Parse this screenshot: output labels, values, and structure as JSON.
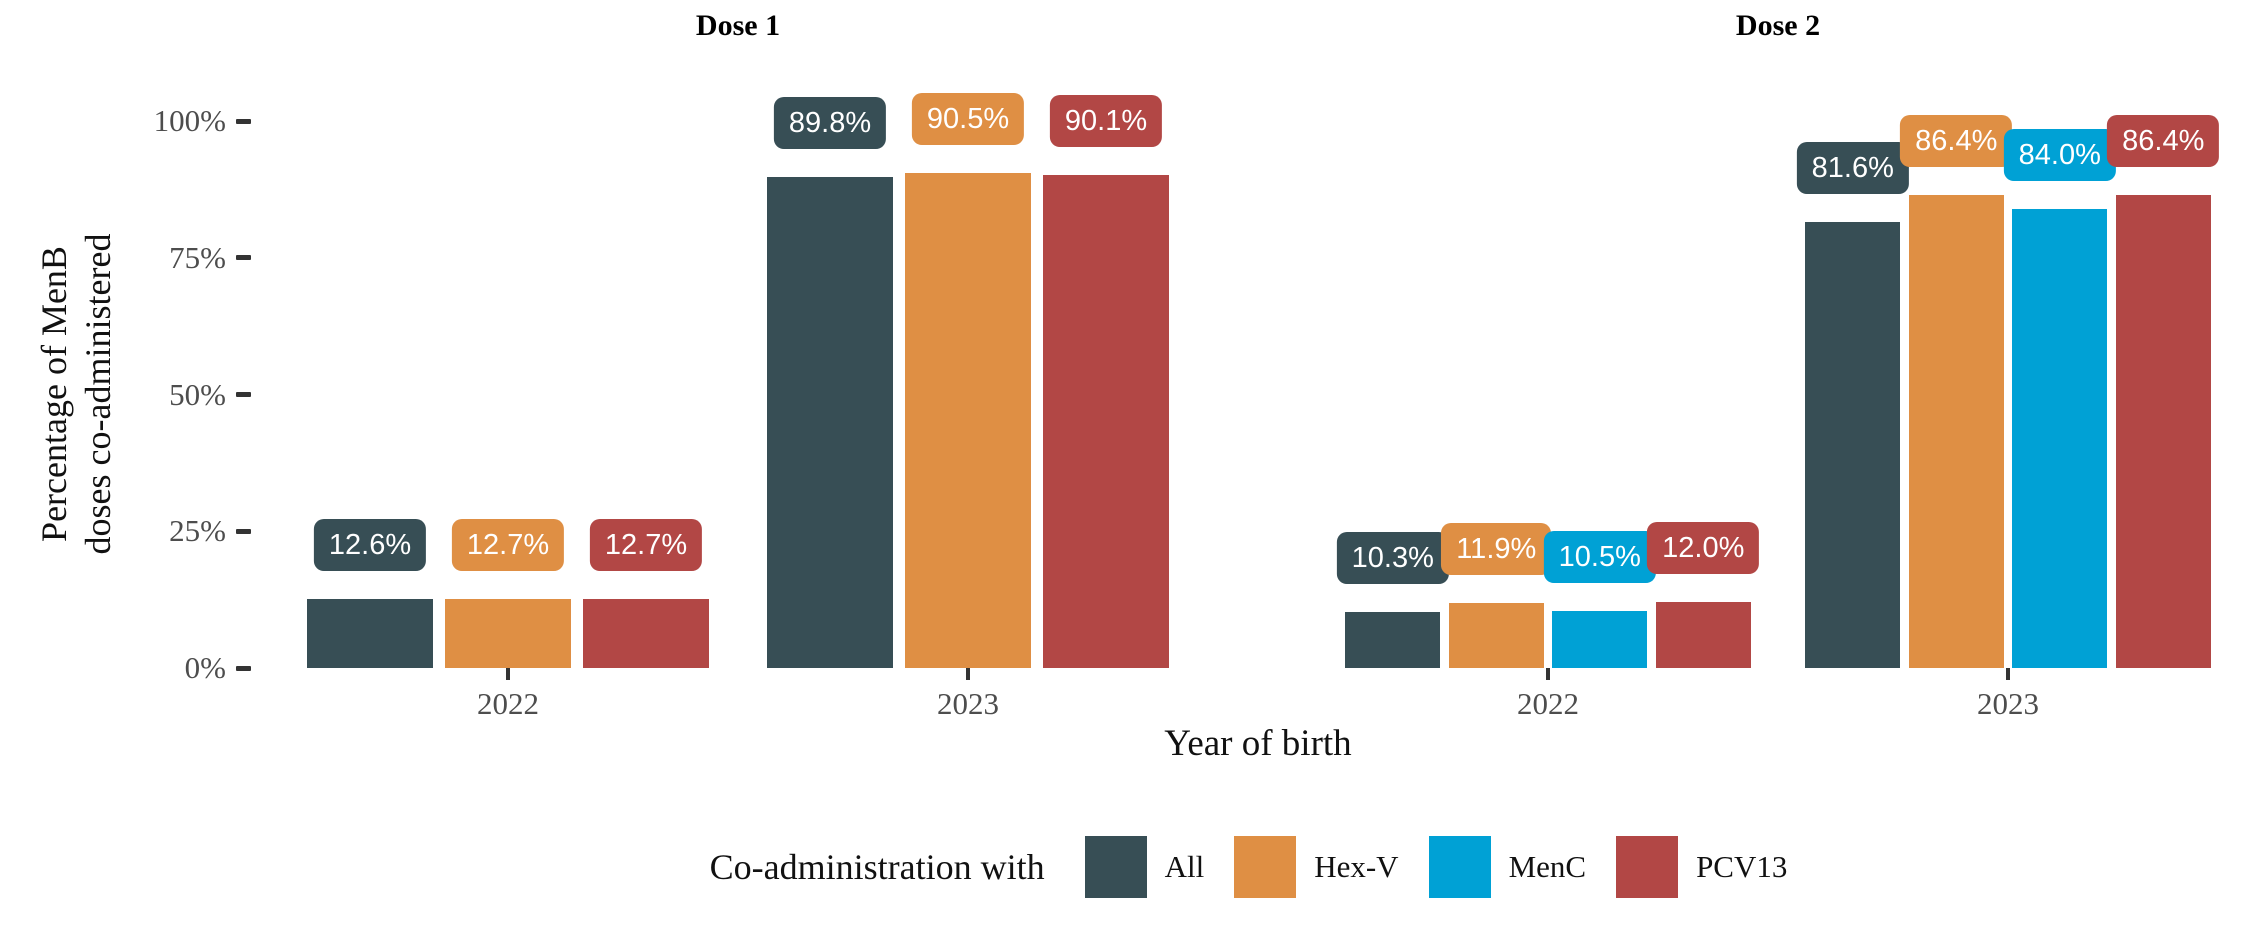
{
  "chart_data": {
    "type": "bar",
    "xlabel": "Year of birth",
    "ylabel": "Percentage of MenB doses co-administered",
    "ylabel_lines": [
      "Percentage of MenB",
      "doses co-administered"
    ],
    "ylim": [
      0,
      100
    ],
    "y_ticks": [
      "0%",
      "25%",
      "50%",
      "75%",
      "100%"
    ],
    "grid": "off",
    "legend_position": "bottom",
    "value_label_format": "one_decimal_percent",
    "categories": [
      "2022",
      "2023"
    ],
    "facets": [
      {
        "title": "Dose 1",
        "series": [
          {
            "name": "All",
            "color": "#374E55",
            "values": [
              12.6,
              89.8
            ]
          },
          {
            "name": "Hex-V",
            "color": "#DF8F44",
            "values": [
              12.7,
              90.5
            ]
          },
          {
            "name": "MenC",
            "color": "#00A1D5",
            "values": [
              null,
              null
            ]
          },
          {
            "name": "PCV13",
            "color": "#B24745",
            "values": [
              12.7,
              90.1
            ]
          }
        ]
      },
      {
        "title": "Dose 2",
        "series": [
          {
            "name": "All",
            "color": "#374E55",
            "values": [
              10.3,
              81.6
            ]
          },
          {
            "name": "Hex-V",
            "color": "#DF8F44",
            "values": [
              11.9,
              86.4
            ]
          },
          {
            "name": "MenC",
            "color": "#00A1D5",
            "values": [
              10.5,
              84.0
            ]
          },
          {
            "name": "PCV13",
            "color": "#B24745",
            "values": [
              12.0,
              86.4
            ]
          }
        ]
      }
    ],
    "legend": {
      "title": "Co-administration with",
      "entries": [
        {
          "label": "All",
          "color": "#374E55"
        },
        {
          "label": "Hex-V",
          "color": "#DF8F44"
        },
        {
          "label": "MenC",
          "color": "#00A1D5"
        },
        {
          "label": "PCV13",
          "color": "#B24745"
        }
      ]
    }
  }
}
